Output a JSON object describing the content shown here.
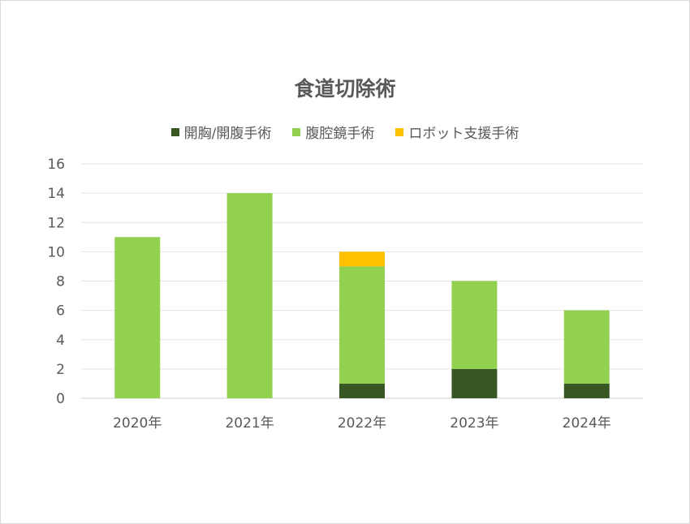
{
  "chart_data": {
    "type": "bar",
    "stacked": true,
    "title": "食道切除術",
    "categories": [
      "2020年",
      "2021年",
      "2022年",
      "2023年",
      "2024年"
    ],
    "series": [
      {
        "name": "開胸/開腹手術",
        "values": [
          0,
          0,
          1,
          2,
          1
        ],
        "color": "#375623"
      },
      {
        "name": "腹腔鏡手術",
        "values": [
          11,
          14,
          8,
          6,
          5
        ],
        "color": "#92d050"
      },
      {
        "name": "ロボット支援手術",
        "values": [
          0,
          0,
          1,
          0,
          0
        ],
        "color": "#ffc000"
      }
    ],
    "ylim": [
      0,
      16
    ],
    "yticks": [
      0,
      2,
      4,
      6,
      8,
      10,
      12,
      14,
      16
    ],
    "grid": true,
    "legend_position": "top"
  }
}
